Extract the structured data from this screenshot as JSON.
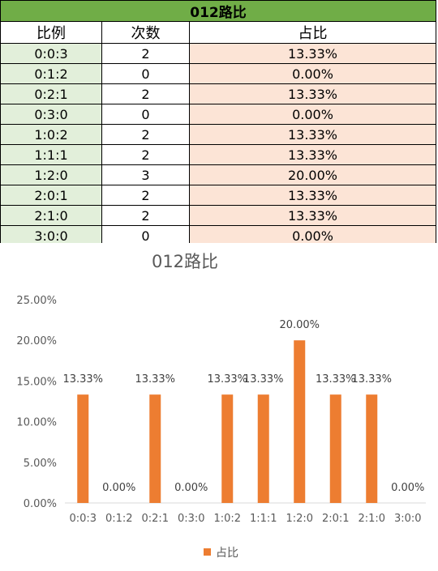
{
  "table": {
    "title": "012路比",
    "headers": [
      "比例",
      "次数",
      "占比"
    ],
    "rows": [
      {
        "ratio": "0:0:3",
        "count": "2",
        "pct": "13.33%"
      },
      {
        "ratio": "0:1:2",
        "count": "0",
        "pct": "0.00%"
      },
      {
        "ratio": "0:2:1",
        "count": "2",
        "pct": "13.33%"
      },
      {
        "ratio": "0:3:0",
        "count": "0",
        "pct": "0.00%"
      },
      {
        "ratio": "1:0:2",
        "count": "2",
        "pct": "13.33%"
      },
      {
        "ratio": "1:1:1",
        "count": "2",
        "pct": "13.33%"
      },
      {
        "ratio": "1:2:0",
        "count": "3",
        "pct": "20.00%"
      },
      {
        "ratio": "2:0:1",
        "count": "2",
        "pct": "13.33%"
      },
      {
        "ratio": "2:1:0",
        "count": "2",
        "pct": "13.33%"
      },
      {
        "ratio": "3:0:0",
        "count": "0",
        "pct": "0.00%"
      }
    ]
  },
  "chart_data": {
    "type": "bar",
    "title": "012路比",
    "categories": [
      "0:0:3",
      "0:1:2",
      "0:2:1",
      "0:3:0",
      "1:0:2",
      "1:1:1",
      "1:2:0",
      "2:0:1",
      "2:1:0",
      "3:0:0"
    ],
    "series": [
      {
        "name": "占比",
        "values": [
          13.33,
          0,
          13.33,
          0,
          13.33,
          13.33,
          20.0,
          13.33,
          13.33,
          0
        ],
        "labels": [
          "13.33%",
          "0.00%",
          "13.33%",
          "0.00%",
          "13.33%",
          "13.33%",
          "20.00%",
          "13.33%",
          "13.33%",
          "0.00%"
        ]
      }
    ],
    "y_ticks": [
      "0.00%",
      "5.00%",
      "10.00%",
      "15.00%",
      "20.00%",
      "25.00%"
    ],
    "ylim": [
      0,
      25
    ],
    "xlabel": "",
    "ylabel": "",
    "grid": false,
    "legend": "bottom",
    "colors": {
      "bar": "#ed7d31",
      "axis_text": "#595959",
      "title": "#595959",
      "axis_line": "#d9d9d9"
    }
  }
}
